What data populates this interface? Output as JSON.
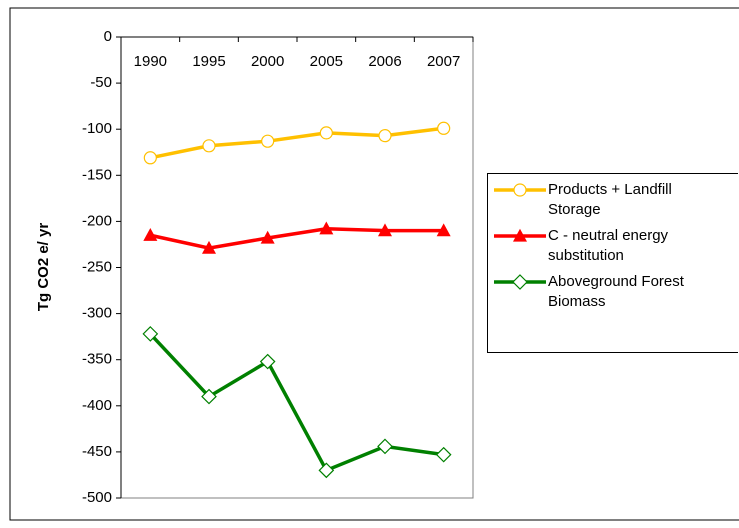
{
  "chart_data": {
    "type": "line",
    "y_label": "Tg CO2 e/ yr",
    "categories": [
      "1990",
      "1995",
      "2000",
      "2005",
      "2006",
      "2007"
    ],
    "ylim": [
      -500,
      0
    ],
    "yticks": [
      0,
      -50,
      -100,
      -150,
      -200,
      -250,
      -300,
      -350,
      -400,
      -450,
      -500
    ],
    "grid": false,
    "legend": "right",
    "series": [
      {
        "name": "Products + Landfill Storage",
        "color": "#ffc000",
        "marker": "circle",
        "values": [
          -131,
          -118,
          -113,
          -104,
          -107,
          -99
        ]
      },
      {
        "name": "C - neutral energy substitution",
        "color": "#ff0000",
        "marker": "triangle",
        "values": [
          -215,
          -229,
          -218,
          -208,
          -210,
          -210
        ]
      },
      {
        "name": "Aboveground Forest Biomass",
        "color": "#008000",
        "marker": "diamond",
        "values": [
          -322,
          -390,
          -352,
          -470,
          -444,
          -453
        ]
      }
    ]
  }
}
